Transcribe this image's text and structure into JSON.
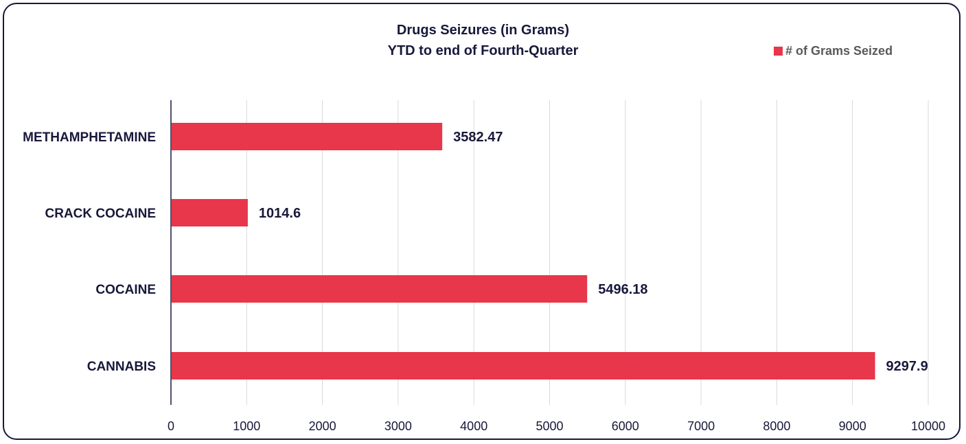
{
  "chart_data": {
    "type": "bar",
    "orientation": "horizontal",
    "title": "Drugs Seizures (in Grams)",
    "subtitle": "YTD to end of Fourth-Quarter",
    "categories": [
      "METHAMPHETAMINE",
      "CRACK COCAINE",
      "COCAINE",
      "CANNABIS"
    ],
    "series": [
      {
        "name": "# of Grams Seized",
        "values": [
          3582.47,
          1014.6,
          5496.18,
          9297.9
        ]
      }
    ],
    "data_labels": [
      "3582.47",
      "1014.6",
      "5496.18",
      "9297.9"
    ],
    "x_ticks": [
      "0",
      "1000",
      "2000",
      "3000",
      "4000",
      "5000",
      "6000",
      "7000",
      "8000",
      "9000",
      "10000"
    ],
    "xlim": [
      0,
      10000
    ],
    "grid": "vertical",
    "legend_position": "top-right",
    "colors": {
      "bar": "#e8364a",
      "text": "#17183a",
      "grid": "#d9d9d9",
      "legend_text": "#5a5a5a"
    }
  }
}
